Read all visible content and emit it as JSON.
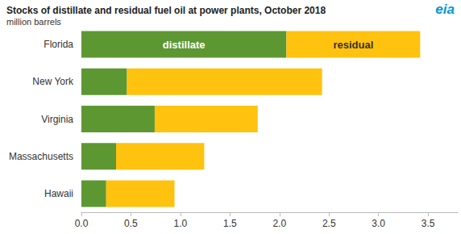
{
  "chart_data": {
    "type": "bar",
    "orientation": "horizontal",
    "stacked": true,
    "title": "Stocks of distillate and residual fuel oil at power plants, October 2018",
    "subtitle": "million barrels",
    "annotations": [
      "eia"
    ],
    "categories": [
      "Florida",
      "New York",
      "Virginia",
      "Massachusetts",
      "Hawaii"
    ],
    "series": [
      {
        "name": "distillate",
        "color": "#5d9732",
        "values": [
          2.07,
          0.46,
          0.74,
          0.35,
          0.25
        ]
      },
      {
        "name": "residual",
        "color": "#ffc20e",
        "values": [
          1.35,
          1.97,
          1.04,
          0.89,
          0.69
        ]
      }
    ],
    "xlim": [
      0,
      3.8
    ],
    "xticks": [
      {
        "value": 0,
        "label": "0.0"
      },
      0.5,
      {
        "value": 1,
        "label": "1.0"
      },
      1.5,
      {
        "value": 2,
        "label": "2.0"
      },
      2.5,
      {
        "value": 3,
        "label": "3.0"
      },
      3.5
    ],
    "grid": false,
    "data_labels": false
  }
}
